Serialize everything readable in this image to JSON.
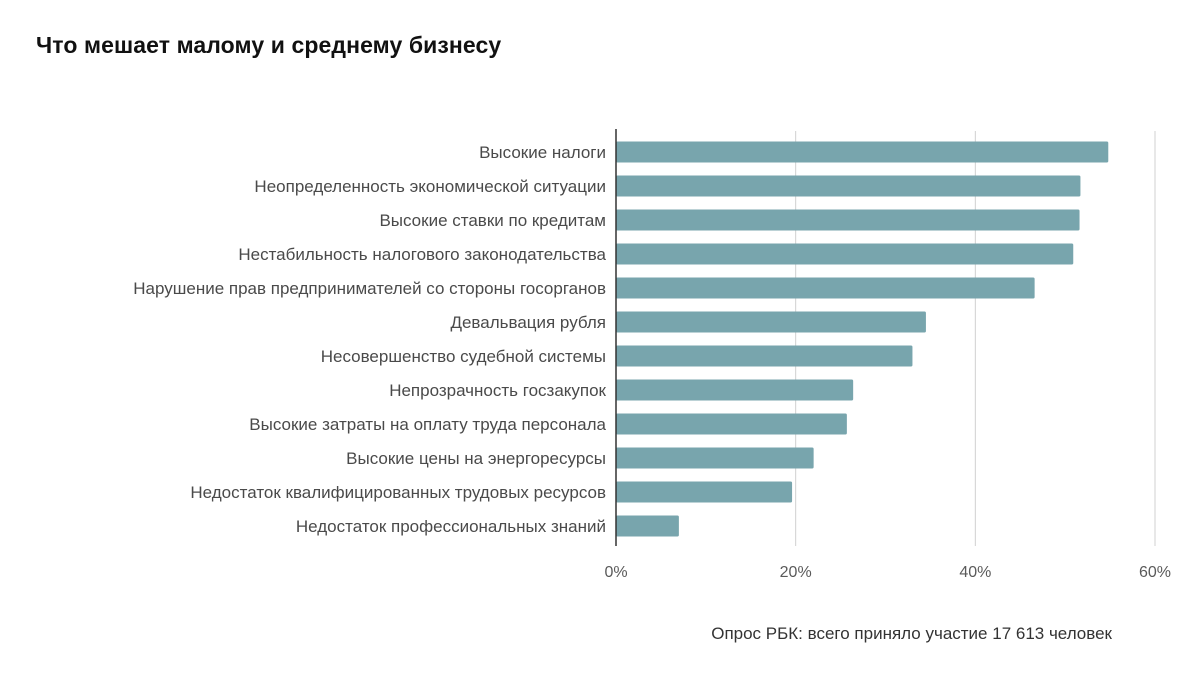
{
  "chart_data": {
    "type": "bar",
    "orientation": "horizontal",
    "title": "Что мешает малому и среднему бизнесу",
    "categories": [
      "Высокие налоги",
      "Неопределенность экономической ситуации",
      "Высокие ставки по кредитам",
      "Нестабильность налогового законодательства",
      "Нарушение прав предпринимателей со стороны госорганов",
      "Девальвация рубля",
      "Несовершенство судебной системы",
      "Непрозрачность госзакупок",
      "Высокие затраты на оплату труда персонала",
      "Высокие цены на энергоресурсы",
      "Недостаток квалифицированных трудовых ресурсов",
      "Недостаток профессиональных знаний"
    ],
    "values": [
      54.8,
      51.7,
      51.6,
      50.9,
      46.6,
      34.5,
      33.0,
      26.4,
      25.7,
      22.0,
      19.6,
      7.0
    ],
    "xlim": [
      0,
      60
    ],
    "xticks": [
      0,
      20,
      40,
      60
    ],
    "xtick_labels": [
      "0%",
      "20%",
      "40%",
      "60%"
    ],
    "xlabel": "",
    "ylabel": "",
    "bar_color": "#78a5ad",
    "grid": true,
    "source": "Опрос РБК: всего приняло участие 17 613 человек"
  }
}
